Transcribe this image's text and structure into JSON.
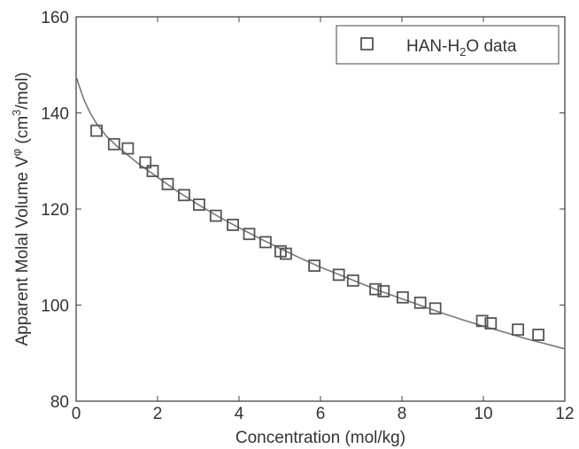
{
  "chart_data": {
    "type": "scatter",
    "xlabel": "Concentration (mol/kg)",
    "ylabel": {
      "base": "Apparent Molal Volume V",
      "sup": "φ",
      "unit_open": " (cm",
      "unit_sup": "3",
      "unit_close": "/mol)"
    },
    "xlim": [
      0,
      12
    ],
    "ylim": [
      80,
      160
    ],
    "xticks": [
      0,
      2,
      4,
      6,
      8,
      10,
      12
    ],
    "yticks": [
      80,
      100,
      120,
      140,
      160
    ],
    "grid": false,
    "legend_position": "top-right",
    "series": [
      {
        "name": "HAN-H2O data",
        "name_parts": {
          "pre": "HAN-H",
          "sub": "2",
          "post": "O data"
        },
        "marker": "square",
        "color": "#555555",
        "x": [
          0.5,
          0.93,
          1.27,
          1.7,
          1.88,
          2.25,
          2.65,
          3.02,
          3.43,
          3.85,
          4.25,
          4.65,
          5.02,
          5.15,
          5.85,
          6.45,
          6.8,
          7.35,
          7.55,
          8.02,
          8.45,
          8.82,
          9.97,
          10.18,
          10.85,
          11.35
        ],
        "y": [
          136.3,
          133.5,
          132.6,
          129.7,
          127.9,
          125.2,
          122.9,
          120.9,
          118.6,
          116.7,
          114.8,
          113.1,
          111.2,
          110.7,
          108.2,
          106.3,
          105.1,
          103.3,
          102.9,
          101.6,
          100.5,
          99.3,
          96.7,
          96.2,
          94.9,
          93.8
        ]
      },
      {
        "type": "line",
        "color": "#777777",
        "x": [
          0.02,
          0.05,
          0.1,
          0.2,
          0.35,
          0.5,
          0.75,
          1,
          1.5,
          2,
          2.5,
          3,
          3.5,
          4,
          4.5,
          5,
          5.5,
          6,
          6.5,
          7,
          7.5,
          8,
          8.5,
          9,
          9.5,
          10,
          10.5,
          11,
          11.5,
          12
        ],
        "y": [
          147.2,
          146.2,
          145,
          142.6,
          139.9,
          137.8,
          135.1,
          133.1,
          129.6,
          126.6,
          123.6,
          120.9,
          118.4,
          116.1,
          113.9,
          111.8,
          109.8,
          107.9,
          106.2,
          104.5,
          102.8,
          101.3,
          99.8,
          98.3,
          96.9,
          95.6,
          94.4,
          93.1,
          92.0,
          90.9
        ]
      }
    ]
  }
}
